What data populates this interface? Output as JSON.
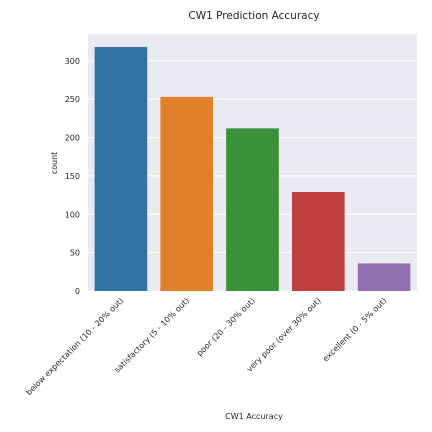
{
  "chart_data": {
    "type": "bar",
    "title": "CW1 Prediction Accuracy",
    "xlabel": "CW1 Accuracy",
    "ylabel": "count",
    "categories": [
      "below expectation (10 - 20% out)",
      "satisfactory (5 - 10% out)",
      "poor (20 - 30% out)",
      "very poor (over 30% out)",
      "excellent (0 - 5% out)"
    ],
    "values": [
      318,
      253,
      212,
      129,
      36
    ],
    "colors": [
      "#3274a1",
      "#e1812c",
      "#3a923a",
      "#c03d3e",
      "#9372b2"
    ],
    "ylim": [
      0,
      335
    ],
    "yticks": [
      0,
      50,
      100,
      150,
      200,
      250,
      300
    ],
    "grid": true,
    "background": "#eaeaf2"
  }
}
